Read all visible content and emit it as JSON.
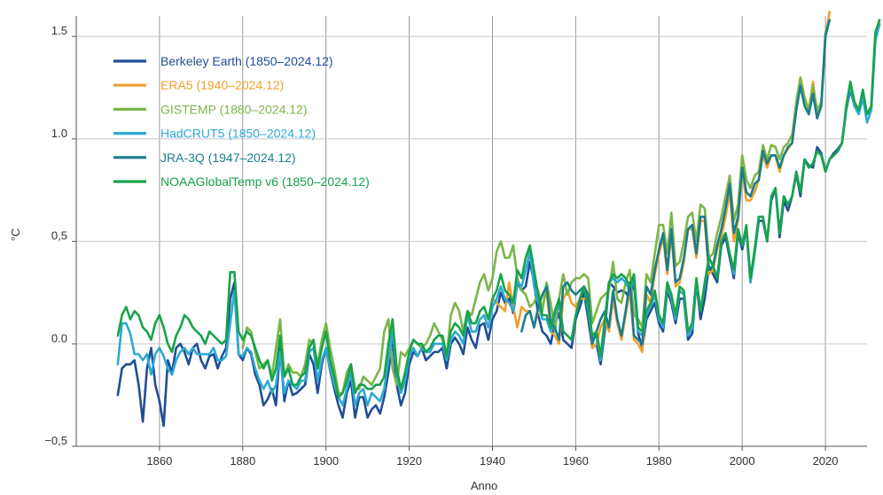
{
  "chart_data": {
    "type": "line",
    "title": "",
    "xlabel": "Anno",
    "ylabel": "°C",
    "xlim": [
      1840,
      2030
    ],
    "ylim": [
      -0.5,
      1.6
    ],
    "xticks": [
      1860,
      1880,
      1900,
      1920,
      1940,
      1960,
      1980,
      2000,
      2020
    ],
    "xtick_labels": [
      "1860",
      "1880",
      "1900",
      "1920",
      "1940",
      "1960",
      "1980",
      "2000",
      "2020"
    ],
    "yticks": [
      -0.5,
      0.0,
      0.5,
      1.0,
      1.5
    ],
    "ytick_labels": [
      "−0,5",
      "0.0",
      "0,5",
      "1.0",
      "1.5"
    ],
    "grid": true,
    "legend_position": "top-left",
    "series": [
      {
        "name": "Berkeley Earth (1850–2024.12)",
        "color": "#1f4e96",
        "x_start": 1850,
        "values": [
          -0.25,
          -0.12,
          -0.1,
          -0.1,
          -0.08,
          -0.2,
          -0.38,
          -0.12,
          -0.02,
          -0.2,
          -0.28,
          -0.4,
          -0.08,
          -0.14,
          -0.02,
          0.0,
          -0.04,
          -0.1,
          -0.02,
          0.0,
          -0.08,
          -0.12,
          -0.06,
          -0.05,
          -0.12,
          -0.06,
          -0.02,
          0.22,
          0.3,
          -0.05,
          -0.08,
          -0.02,
          -0.05,
          -0.15,
          -0.2,
          -0.3,
          -0.27,
          -0.22,
          -0.3,
          -0.02,
          -0.28,
          -0.18,
          -0.25,
          -0.24,
          -0.22,
          -0.2,
          -0.05,
          -0.1,
          -0.24,
          -0.1,
          -0.02,
          -0.13,
          -0.22,
          -0.3,
          -0.36,
          -0.24,
          -0.18,
          -0.36,
          -0.26,
          -0.26,
          -0.36,
          -0.32,
          -0.3,
          -0.34,
          -0.26,
          -0.14,
          0.02,
          -0.2,
          -0.3,
          -0.24,
          -0.1,
          -0.04,
          -0.06,
          -0.02,
          -0.08,
          -0.06,
          -0.04,
          -0.04,
          -0.02,
          -0.12,
          0.0,
          0.03,
          0.0,
          -0.05,
          0.08,
          0.02,
          -0.02,
          0.09,
          0.1,
          0.02,
          0.12,
          0.16,
          0.25,
          0.2,
          0.22,
          0.15,
          0.3,
          0.26,
          0.28,
          0.4,
          0.3,
          0.14,
          0.06,
          0.04,
          0.0,
          0.1,
          0.15,
          0.02,
          0.0,
          -0.02,
          0.12,
          0.18,
          0.25,
          0.12,
          -0.02,
          0.0,
          -0.1,
          0.06,
          0.3,
          0.28,
          0.25,
          0.26,
          0.25,
          0.22,
          0.3,
          0.05,
          -0.02,
          0.12,
          0.16,
          0.2,
          0.1,
          0.06,
          0.26,
          0.2,
          0.1,
          0.22,
          0.22,
          0.02,
          0.05,
          0.3,
          0.12,
          0.22,
          0.38,
          0.34,
          0.3,
          0.48,
          0.52,
          0.42,
          0.32,
          0.54,
          0.46,
          0.56,
          0.3,
          0.44,
          0.6,
          0.6,
          0.5,
          0.7,
          0.76,
          0.52,
          0.7,
          0.65,
          0.72,
          0.83,
          0.72,
          0.9,
          0.87,
          0.86,
          0.96,
          0.93,
          0.84,
          0.9,
          0.93,
          0.95,
          0.98,
          1.14,
          1.24,
          1.16,
          1.13,
          1.2,
          1.12,
          1.14,
          1.5,
          1.56
        ]
      },
      {
        "name": "ERA5 (1940–2024.12)",
        "color": "#f0a030",
        "x_start": 1940,
        "values": [
          0.22,
          0.2,
          0.18,
          0.16,
          0.3,
          0.18,
          0.08,
          0.18,
          0.16,
          0.16,
          0.08,
          0.16,
          0.18,
          0.26,
          0.06,
          0.04,
          0.0,
          0.22,
          0.26,
          0.2,
          0.18,
          0.22,
          0.22,
          0.22,
          -0.02,
          0.0,
          0.08,
          0.12,
          0.06,
          0.22,
          0.1,
          0.02,
          0.14,
          0.26,
          0.02,
          0.0,
          -0.04,
          0.24,
          0.2,
          0.34,
          0.44,
          0.52,
          0.34,
          0.54,
          0.28,
          0.3,
          0.4,
          0.56,
          0.56,
          0.42,
          0.6,
          0.6,
          0.34,
          0.36,
          0.46,
          0.52,
          0.62,
          0.74,
          0.5,
          0.6,
          0.84,
          0.7,
          0.7,
          0.74,
          0.8,
          0.92,
          0.86,
          0.92,
          0.92,
          0.84,
          0.92,
          0.95,
          0.98,
          1.16,
          1.3,
          1.2,
          1.14,
          1.28,
          1.12,
          1.18,
          1.5,
          1.62
        ]
      },
      {
        "name": "GISTEMP (1880–2024.12)",
        "color": "#7ab648",
        "x_start": 1880,
        "values": [
          -0.02,
          0.08,
          0.06,
          -0.04,
          -0.12,
          -0.1,
          -0.08,
          -0.16,
          -0.02,
          0.12,
          -0.16,
          -0.1,
          -0.14,
          -0.14,
          -0.16,
          -0.1,
          0.02,
          0.0,
          -0.1,
          0.02,
          0.1,
          -0.02,
          -0.12,
          -0.24,
          -0.24,
          -0.14,
          -0.1,
          -0.22,
          -0.22,
          -0.16,
          -0.18,
          -0.2,
          -0.16,
          -0.12,
          0.06,
          0.12,
          -0.12,
          -0.2,
          -0.04,
          -0.06,
          -0.02,
          0.02,
          0.0,
          -0.02,
          0.0,
          0.04,
          0.1,
          0.06,
          0.02,
          -0.06,
          0.14,
          0.2,
          0.16,
          0.06,
          0.16,
          0.14,
          0.22,
          0.3,
          0.34,
          0.26,
          0.32,
          0.45,
          0.5,
          0.42,
          0.42,
          0.48,
          0.32,
          0.26,
          0.24,
          0.18,
          0.2,
          0.26,
          0.16,
          0.3,
          0.2,
          0.06,
          0.22,
          0.34,
          0.24,
          0.3,
          0.32,
          0.32,
          0.34,
          0.32,
          0.1,
          0.16,
          0.22,
          0.24,
          0.26,
          0.4,
          0.22,
          0.2,
          0.3,
          0.36,
          0.14,
          0.12,
          0.08,
          0.34,
          0.3,
          0.44,
          0.58,
          0.58,
          0.44,
          0.64,
          0.38,
          0.4,
          0.5,
          0.62,
          0.64,
          0.5,
          0.68,
          0.66,
          0.42,
          0.44,
          0.54,
          0.62,
          0.72,
          0.82,
          0.6,
          0.68,
          0.92,
          0.8,
          0.76,
          0.82,
          0.84,
          0.97,
          0.9,
          0.97,
          0.96,
          0.9,
          0.96,
          0.98,
          1.02,
          1.18,
          1.3,
          1.2,
          1.14,
          1.26,
          1.14,
          1.18,
          1.52,
          1.58
        ]
      },
      {
        "name": "HadCRUT5 (1850–2024.12)",
        "color": "#2eaad4",
        "x_start": 1850,
        "values": [
          -0.1,
          0.1,
          0.1,
          0.05,
          -0.05,
          -0.05,
          -0.08,
          -0.05,
          -0.15,
          -0.05,
          -0.02,
          -0.06,
          -0.12,
          -0.15,
          -0.08,
          -0.04,
          -0.02,
          -0.05,
          -0.02,
          -0.05,
          -0.05,
          -0.05,
          -0.05,
          -0.02,
          -0.08,
          -0.08,
          -0.06,
          0.1,
          0.26,
          -0.05,
          -0.06,
          -0.02,
          -0.04,
          -0.12,
          -0.18,
          -0.22,
          -0.18,
          -0.24,
          -0.2,
          -0.04,
          -0.24,
          -0.18,
          -0.2,
          -0.22,
          -0.18,
          -0.18,
          -0.04,
          -0.02,
          -0.18,
          -0.08,
          -0.02,
          -0.12,
          -0.2,
          -0.26,
          -0.3,
          -0.22,
          -0.14,
          -0.3,
          -0.24,
          -0.22,
          -0.3,
          -0.24,
          -0.26,
          -0.28,
          -0.22,
          -0.08,
          0.06,
          -0.14,
          -0.24,
          -0.18,
          -0.06,
          -0.02,
          -0.06,
          -0.02,
          -0.04,
          -0.04,
          0.0,
          0.0,
          0.0,
          -0.08,
          0.02,
          0.06,
          0.04,
          0.0,
          0.14,
          0.06,
          0.06,
          0.12,
          0.14,
          0.08,
          0.18,
          0.22,
          0.28,
          0.22,
          0.2,
          0.16,
          0.3,
          0.28,
          0.36,
          0.45,
          0.28,
          0.2,
          0.12,
          0.12,
          0.06,
          0.14,
          0.2,
          0.06,
          0.04,
          0.02,
          0.14,
          0.22,
          0.28,
          0.16,
          0.02,
          0.04,
          -0.08,
          0.1,
          0.3,
          0.32,
          0.3,
          0.32,
          0.3,
          0.26,
          0.32,
          0.06,
          0.04,
          0.14,
          0.18,
          0.24,
          0.12,
          0.08,
          0.28,
          0.22,
          0.12,
          0.26,
          0.24,
          0.04,
          0.08,
          0.3,
          0.16,
          0.28,
          0.42,
          0.38,
          0.32,
          0.5,
          0.54,
          0.44,
          0.34,
          0.56,
          0.48,
          0.56,
          0.3,
          0.44,
          0.62,
          0.62,
          0.5,
          0.72,
          0.76,
          0.54,
          0.72,
          0.68,
          0.72,
          0.84,
          0.74,
          0.9,
          0.86,
          0.88,
          0.94,
          0.92,
          0.84,
          0.9,
          0.92,
          0.94,
          0.98,
          1.14,
          1.26,
          1.16,
          1.12,
          1.2,
          1.08,
          1.14,
          1.48,
          1.56
        ]
      },
      {
        "name": "JRA-3Q (1947–2024.12)",
        "color": "#1a7d8c",
        "x_start": 1947,
        "values": [
          0.06,
          0.14,
          0.16,
          0.08,
          0.18,
          0.24,
          0.28,
          0.1,
          0.08,
          0.02,
          0.28,
          0.3,
          0.26,
          0.24,
          0.26,
          0.28,
          0.24,
          0.0,
          0.06,
          0.12,
          0.16,
          0.08,
          0.26,
          0.12,
          0.04,
          0.16,
          0.3,
          0.04,
          0.02,
          0.0,
          0.28,
          0.24,
          0.36,
          0.46,
          0.54,
          0.36,
          0.56,
          0.3,
          0.32,
          0.42,
          0.56,
          0.58,
          0.44,
          0.62,
          0.62,
          0.36,
          0.38,
          0.48,
          0.56,
          0.66,
          0.78,
          0.54,
          0.62,
          0.86,
          0.74,
          0.72,
          0.78,
          0.8,
          0.94,
          0.88,
          0.92,
          0.92,
          0.86,
          0.92,
          0.96,
          0.98,
          1.14,
          1.26,
          1.16,
          1.12,
          1.22,
          1.1,
          1.16,
          1.5,
          1.58
        ]
      },
      {
        "name": "NOAAGlobalTemp v6 (1850–2024.12)",
        "color": "#17a34a",
        "x_start": 1850,
        "values": [
          0.04,
          0.14,
          0.18,
          0.12,
          0.16,
          0.14,
          0.08,
          0.06,
          0.02,
          0.1,
          0.14,
          0.08,
          0.0,
          -0.04,
          0.04,
          0.08,
          0.14,
          0.12,
          0.08,
          0.06,
          0.04,
          0.0,
          0.06,
          0.04,
          0.02,
          0.0,
          0.02,
          0.35,
          0.35,
          0.06,
          0.02,
          0.06,
          0.04,
          -0.02,
          -0.08,
          -0.12,
          -0.08,
          -0.18,
          -0.12,
          0.04,
          -0.16,
          -0.12,
          -0.2,
          -0.2,
          -0.16,
          -0.14,
          -0.02,
          0.02,
          -0.12,
          -0.02,
          0.06,
          -0.08,
          -0.16,
          -0.26,
          -0.24,
          -0.18,
          -0.1,
          -0.24,
          -0.2,
          -0.2,
          -0.22,
          -0.22,
          -0.2,
          -0.2,
          -0.16,
          0.0,
          0.12,
          -0.12,
          -0.22,
          -0.14,
          -0.04,
          0.02,
          0.0,
          0.0,
          -0.04,
          -0.02,
          0.02,
          0.04,
          0.04,
          -0.06,
          0.06,
          0.1,
          0.08,
          0.04,
          0.16,
          0.1,
          0.1,
          0.16,
          0.18,
          0.12,
          0.22,
          0.26,
          0.34,
          0.26,
          0.24,
          0.2,
          0.36,
          0.32,
          0.42,
          0.48,
          0.36,
          0.24,
          0.14,
          0.14,
          0.08,
          0.16,
          0.22,
          0.06,
          0.04,
          0.02,
          0.14,
          0.22,
          0.28,
          0.18,
          0.04,
          0.06,
          -0.06,
          0.12,
          0.3,
          0.34,
          0.32,
          0.34,
          0.32,
          0.28,
          0.34,
          0.08,
          0.06,
          0.16,
          0.2,
          0.26,
          0.14,
          0.1,
          0.3,
          0.24,
          0.14,
          0.28,
          0.26,
          0.06,
          0.1,
          0.32,
          0.16,
          0.3,
          0.42,
          0.38,
          0.32,
          0.5,
          0.54,
          0.44,
          0.36,
          0.56,
          0.48,
          0.58,
          0.32,
          0.46,
          0.62,
          0.62,
          0.5,
          0.72,
          0.76,
          0.54,
          0.72,
          0.68,
          0.72,
          0.84,
          0.74,
          0.9,
          0.86,
          0.88,
          0.94,
          0.92,
          0.84,
          0.9,
          0.92,
          0.94,
          0.98,
          1.16,
          1.28,
          1.18,
          1.14,
          1.24,
          1.12,
          1.16,
          1.52,
          1.58
        ]
      }
    ]
  }
}
